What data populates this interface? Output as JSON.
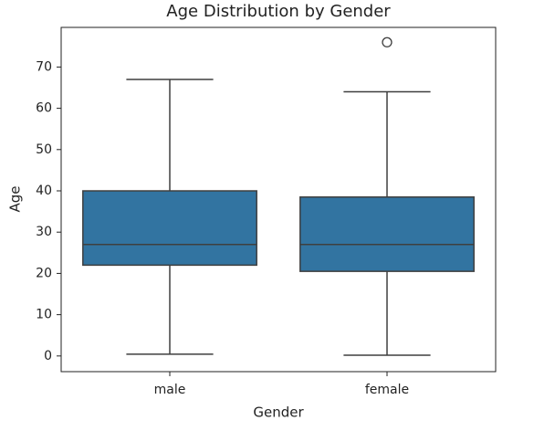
{
  "chart_data": {
    "type": "box",
    "title": "Age Distribution by Gender",
    "xlabel": "Gender",
    "ylabel": "Age",
    "categories": [
      "male",
      "female"
    ],
    "color": "#3274a1",
    "edgecolor": "#3f3f3f",
    "boxes": [
      {
        "whislo": 0.42,
        "q1": 22,
        "median": 27,
        "q3": 40,
        "whishi": 67,
        "fliers": []
      },
      {
        "whislo": 0.17,
        "q1": 20.5,
        "median": 27,
        "q3": 38.5,
        "whishi": 64,
        "fliers": [
          76
        ]
      }
    ],
    "ylim": [
      -3.8,
      79.6
    ],
    "yticks": [
      0,
      10,
      20,
      30,
      40,
      50,
      60,
      70
    ],
    "grid": false
  }
}
